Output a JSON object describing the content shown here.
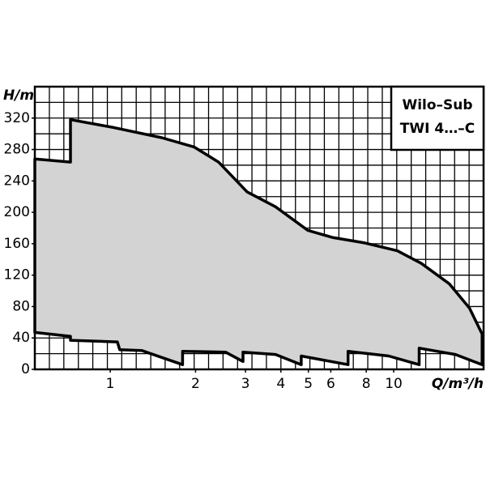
{
  "chart_data": {
    "type": "envelope",
    "title_lines": [
      "Wilo–Sub",
      "TWI 4…–C"
    ],
    "y_label": "H/m",
    "x_label": "Q/m³/h",
    "xscale": "log",
    "xlim": [
      0.542,
      20.75
    ],
    "ylim": [
      0,
      360
    ],
    "xticks": [
      1,
      2,
      3,
      4,
      5,
      6,
      8,
      10
    ],
    "yticks": [
      0,
      40,
      80,
      120,
      160,
      200,
      240,
      280,
      320
    ],
    "xgrid": [
      0.61,
      0.686,
      0.772,
      0.868,
      0.977,
      1.098,
      1.235,
      1.39,
      1.562,
      1.757,
      1.977,
      2.223,
      2.5,
      2.813,
      3.162,
      3.556,
      4,
      4.502,
      5.062,
      5.693,
      6.406,
      7.202,
      8.101,
      9.115,
      10.25,
      11.53,
      12.97,
      14.58,
      16.4,
      18.45
    ],
    "ygrid": [
      20,
      40,
      60,
      80,
      100,
      120,
      140,
      160,
      180,
      200,
      220,
      240,
      260,
      280,
      300,
      320,
      340
    ],
    "grid": true,
    "color": "#d3d3d3",
    "x": [
      0.542,
      0.724,
      0.724,
      1.027,
      1.52,
      1.98,
      2.41,
      3.04,
      3.83,
      4.98,
      6.07,
      7.9,
      10.3,
      12.5,
      15.7,
      18.5,
      20.5,
      20.5,
      16.5,
      12.3,
      12.3,
      9.6,
      6.9,
      6.9,
      4.72,
      4.72,
      3.83,
      2.94,
      2.94,
      2.55,
      1.8,
      1.8,
      1.29,
      1.08,
      1.06,
      0.724,
      0.724,
      0.542
    ],
    "values": [
      268,
      264,
      318,
      308,
      295,
      283,
      264,
      226,
      207,
      177,
      168,
      161,
      151,
      135,
      109,
      78,
      45,
      6,
      19,
      27,
      6,
      17,
      23,
      6,
      17,
      6,
      19,
      22,
      10,
      22,
      23,
      6,
      24,
      25,
      35,
      37,
      42,
      47
    ]
  }
}
